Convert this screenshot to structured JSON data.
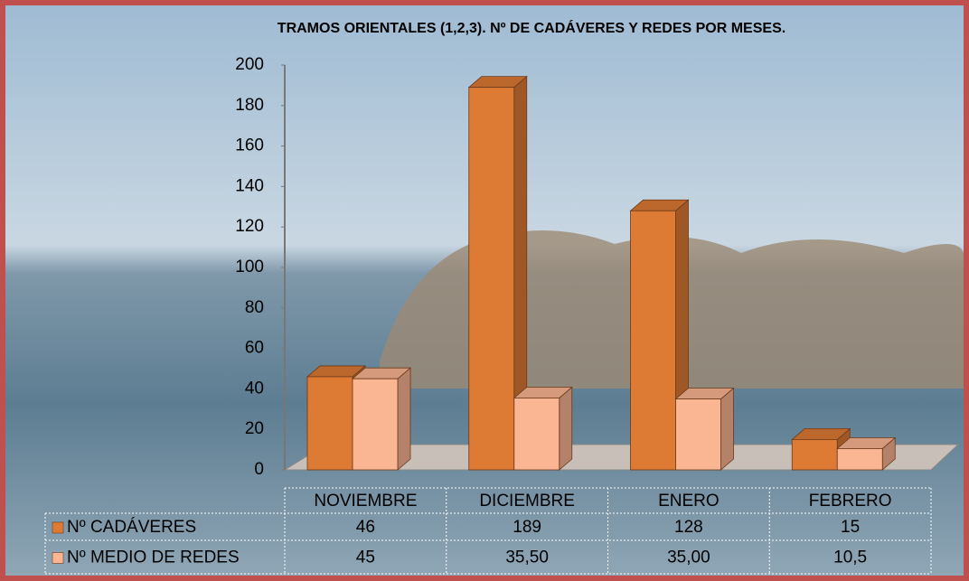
{
  "chart_data": {
    "type": "bar3d",
    "title": "TRAMOS ORIENTALES (1,2,3).  Nº DE CADÁVERES Y REDES POR MESES.",
    "categories": [
      "NOVIEMBRE",
      "DICIEMBRE",
      "ENERO",
      "FEBRERO"
    ],
    "series": [
      {
        "name": "Nº CADÁVERES",
        "color": "#dd7a34",
        "values": [
          46,
          189,
          128,
          15
        ]
      },
      {
        "name": "Nº MEDIO DE REDES",
        "color": "#fab592",
        "values": [
          45,
          35.5,
          35,
          10.5
        ],
        "value_labels": [
          "45",
          "35,50",
          "35,00",
          "10,5"
        ]
      }
    ],
    "ylim": [
      0,
      200
    ],
    "yticks": [
      0,
      20,
      40,
      60,
      80,
      100,
      120,
      140,
      160,
      180,
      200
    ]
  }
}
